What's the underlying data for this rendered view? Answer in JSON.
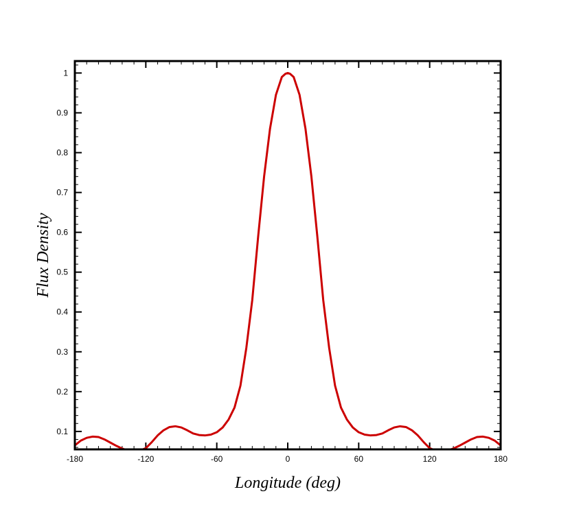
{
  "chart_data": {
    "type": "line",
    "title": "",
    "xlabel": "Longitude (deg)",
    "ylabel": "Flux Density",
    "xlim": [
      -180,
      180
    ],
    "ylim": [
      0.055,
      1.03
    ],
    "x_ticks": [
      -180,
      -120,
      -60,
      0,
      60,
      120,
      180
    ],
    "y_ticks": [
      0.1,
      0.2,
      0.3,
      0.4,
      0.5,
      0.6,
      0.7,
      0.8,
      0.9,
      1
    ],
    "x_minor_step": 10,
    "y_minor_step": 0.02,
    "grid": false,
    "line_color": "#cc0000",
    "series": [
      {
        "x": [
          -180,
          -175,
          -170,
          -165,
          -160,
          -155,
          -150,
          -145,
          -140,
          -135,
          -130,
          -125,
          -120,
          -115,
          -110,
          -105,
          -100,
          -95,
          -90,
          -85,
          -80,
          -75,
          -70,
          -65,
          -60,
          -55,
          -50,
          -45,
          -40,
          -35,
          -30,
          -25,
          -20,
          -15,
          -10,
          -5,
          -2,
          0,
          2,
          5,
          10,
          15,
          20,
          25,
          30,
          35,
          40,
          45,
          50,
          55,
          60,
          65,
          70,
          75,
          80,
          85,
          90,
          95,
          100,
          105,
          110,
          115,
          120,
          125,
          130,
          135,
          140,
          145,
          150,
          155,
          160,
          165,
          170,
          175,
          180
        ],
        "values": [
          0.065,
          0.077,
          0.084,
          0.087,
          0.086,
          0.08,
          0.072,
          0.064,
          0.057,
          0.052,
          0.05,
          0.052,
          0.058,
          0.073,
          0.09,
          0.103,
          0.111,
          0.113,
          0.11,
          0.103,
          0.095,
          0.091,
          0.09,
          0.092,
          0.098,
          0.11,
          0.13,
          0.16,
          0.215,
          0.31,
          0.43,
          0.59,
          0.74,
          0.86,
          0.945,
          0.99,
          0.998,
          1.0,
          0.998,
          0.99,
          0.945,
          0.86,
          0.74,
          0.59,
          0.43,
          0.31,
          0.215,
          0.16,
          0.13,
          0.11,
          0.098,
          0.092,
          0.09,
          0.091,
          0.095,
          0.103,
          0.11,
          0.113,
          0.111,
          0.103,
          0.09,
          0.073,
          0.058,
          0.052,
          0.05,
          0.052,
          0.057,
          0.064,
          0.072,
          0.08,
          0.086,
          0.087,
          0.084,
          0.077,
          0.065
        ]
      }
    ]
  }
}
